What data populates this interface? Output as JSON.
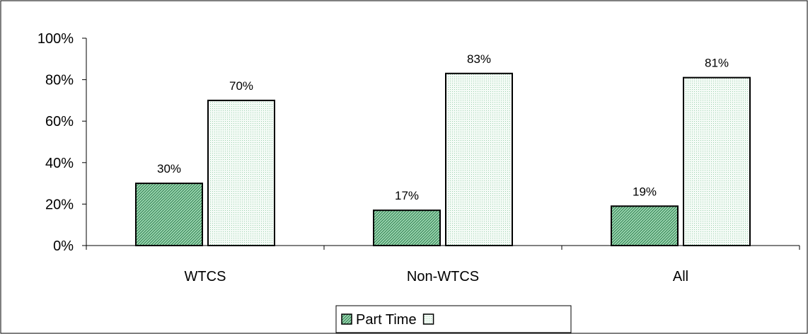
{
  "chart_data": {
    "type": "bar",
    "categories": [
      "WTCS",
      "Non-WTCS",
      "All"
    ],
    "series": [
      {
        "name": "Part Time",
        "values": [
          30,
          17,
          19
        ],
        "labels": [
          "30%",
          "17%",
          "19%"
        ],
        "color": "#2e8b57",
        "fill_style": "diagonal-hatch"
      },
      {
        "name": "",
        "values": [
          70,
          83,
          81
        ],
        "labels": [
          "70%",
          "83%",
          "81%"
        ],
        "color": "#7fcf9f",
        "fill_style": "dotted"
      }
    ],
    "yticks": [
      {
        "value": 0,
        "label": "0%"
      },
      {
        "value": 20,
        "label": "20%"
      },
      {
        "value": 40,
        "label": "40%"
      },
      {
        "value": 60,
        "label": "60%"
      },
      {
        "value": 80,
        "label": "80%"
      },
      {
        "value": 100,
        "label": "100%"
      }
    ],
    "ylim": [
      0,
      100
    ],
    "title": "",
    "xlabel": "",
    "ylabel": "",
    "grid": false,
    "legend_position": "bottom-center"
  }
}
